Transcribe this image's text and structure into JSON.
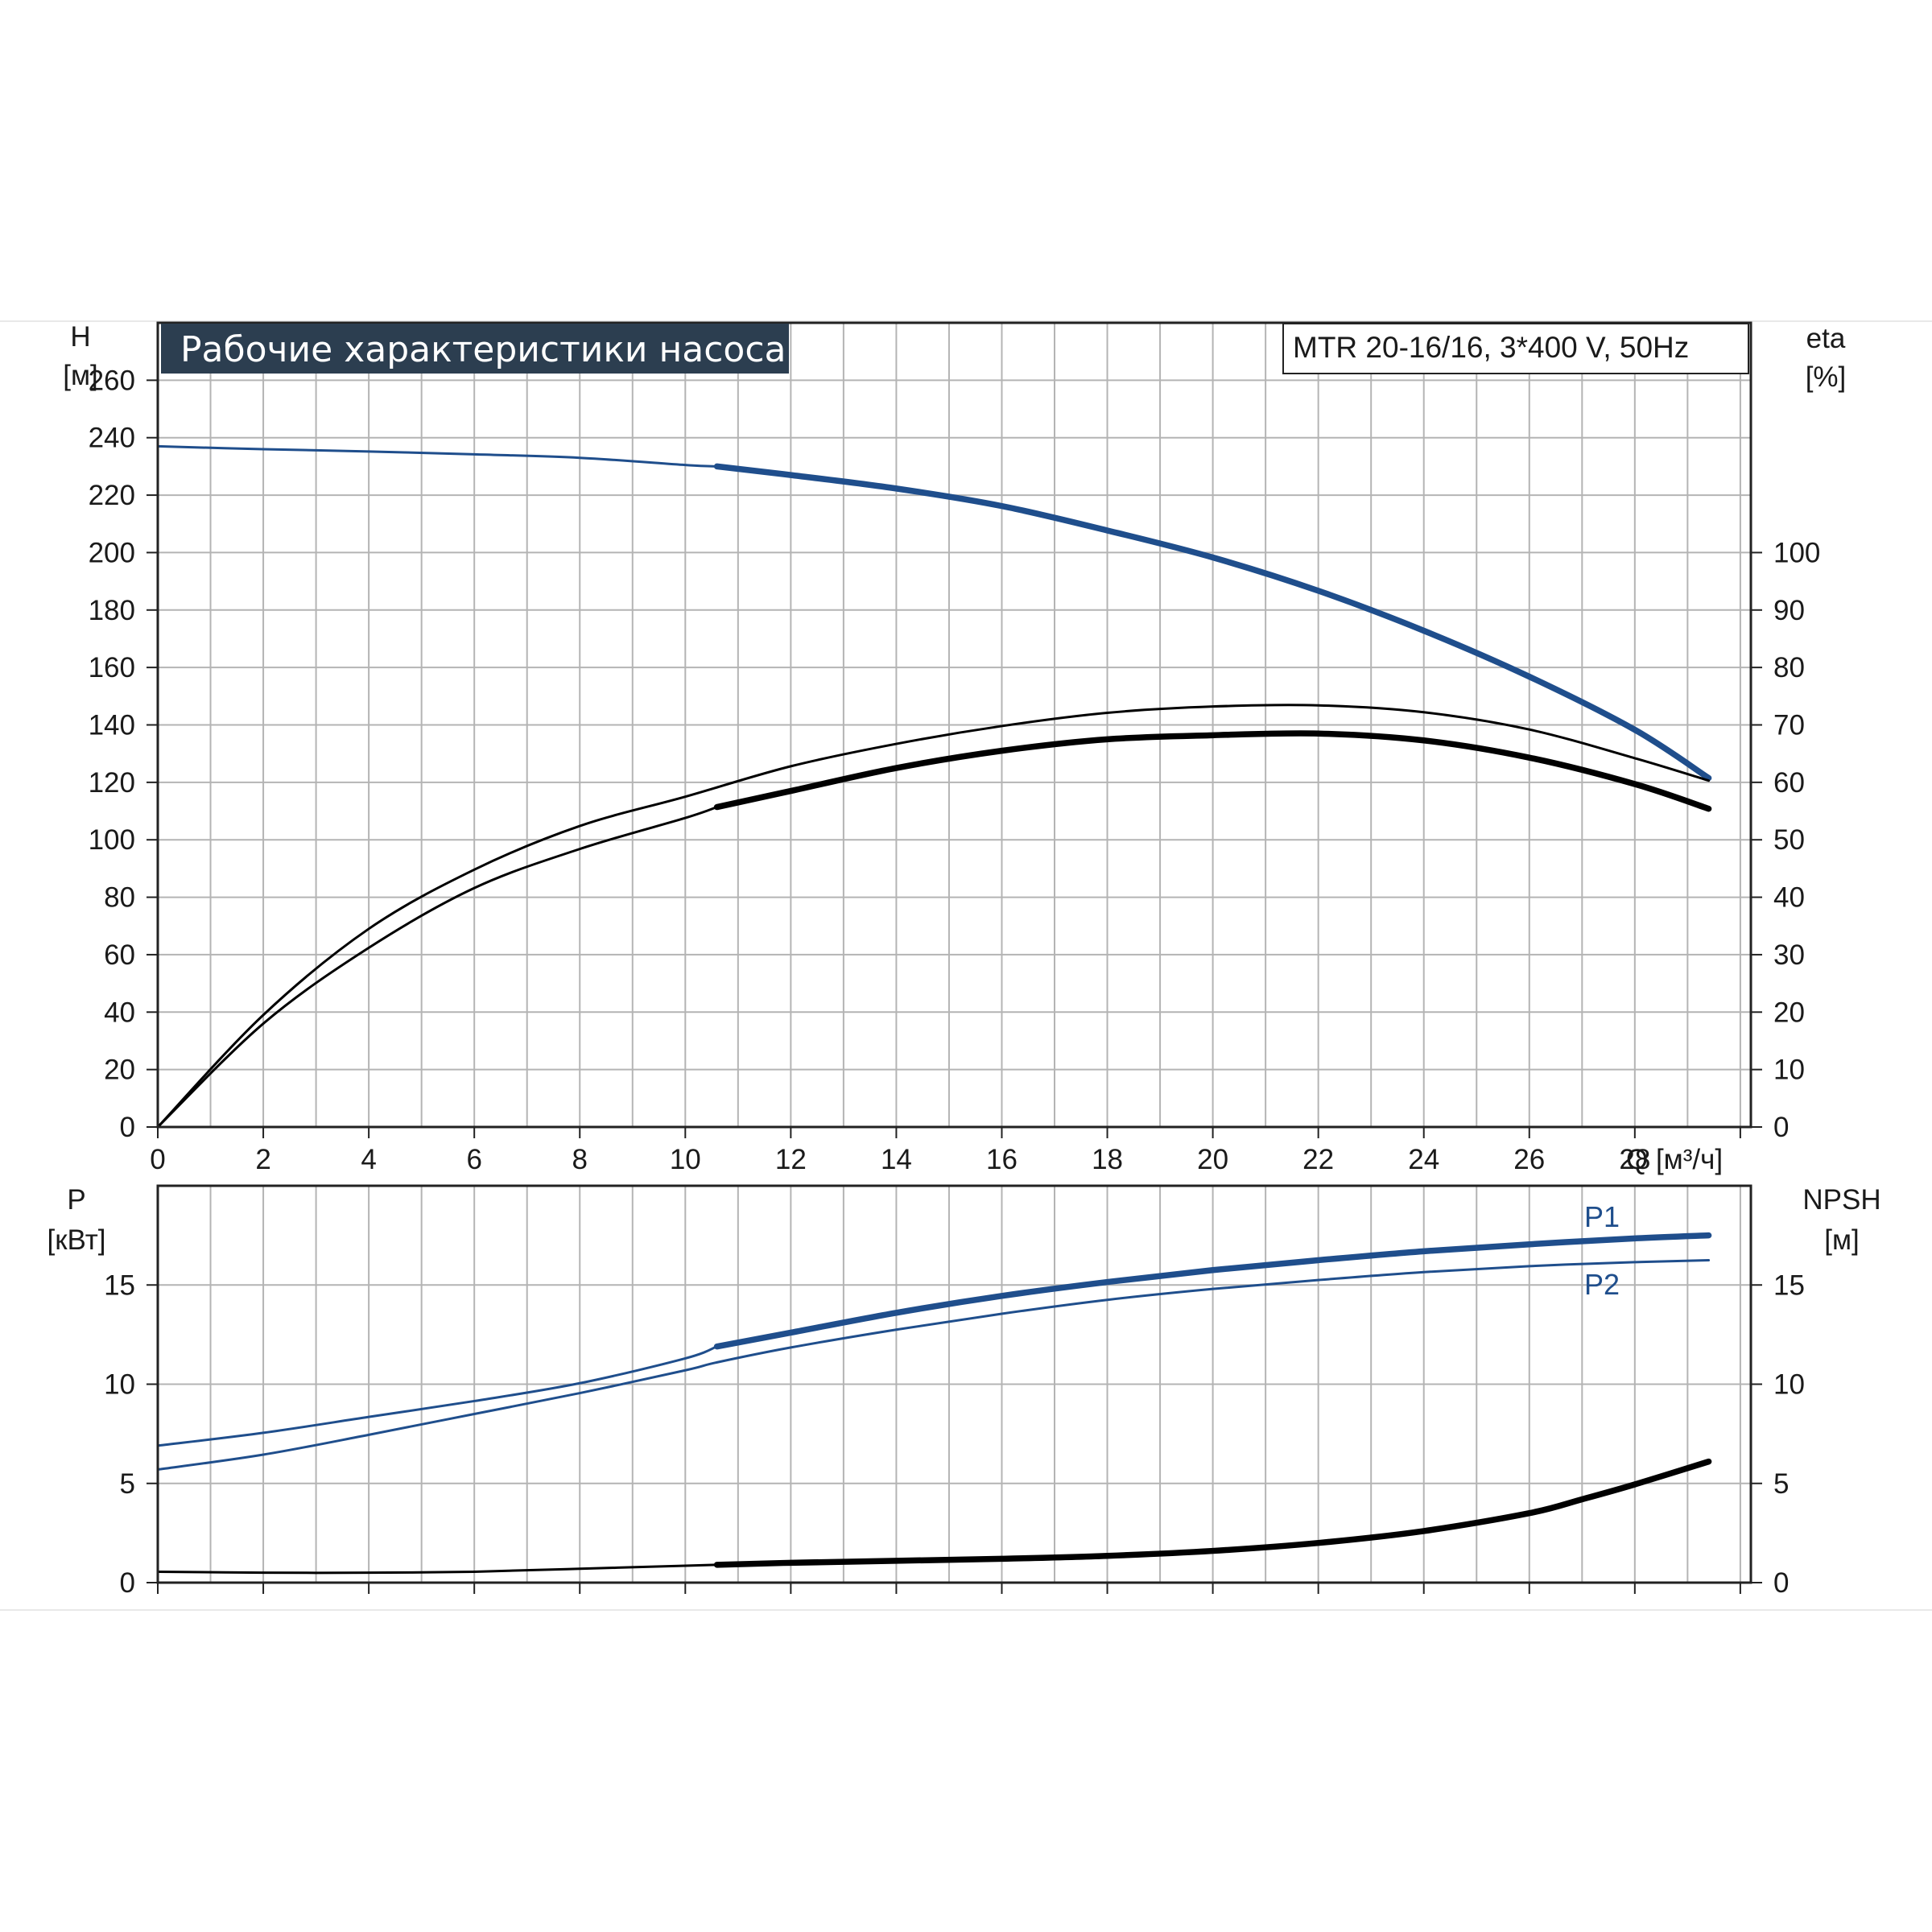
{
  "chart_data": [
    {
      "type": "line",
      "title": "Рабочие характеристики насоса",
      "model": "MTR 20-16/16, 3*400 V, 50Hz",
      "colors": {
        "blue": "#1f4e8c",
        "black": "#000000",
        "grid": "#b4b4b4",
        "title_bg": "#2c3e50"
      },
      "x_axis": {
        "label": "Q [м³/ч]",
        "ticks": [
          "0",
          "2",
          "4",
          "6",
          "8",
          "10",
          "12",
          "14",
          "16",
          "18",
          "20",
          "22",
          "24",
          "26",
          "28"
        ],
        "range": [
          0,
          30.2
        ]
      },
      "y_left": {
        "label": "H",
        "unit": "[м]",
        "ticks": [
          "0",
          "20",
          "40",
          "60",
          "80",
          "100",
          "120",
          "140",
          "160",
          "180",
          "200",
          "220",
          "240",
          "260"
        ],
        "range": [
          0,
          280
        ]
      },
      "y_right": {
        "label": "eta",
        "unit": "[%]",
        "ticks": [
          "0",
          "10",
          "20",
          "30",
          "40",
          "50",
          "60",
          "70",
          "80",
          "90",
          "100"
        ],
        "range": [
          0,
          140
        ]
      },
      "series": [
        {
          "color": "blue",
          "axis": "left",
          "thick_from": 10.6,
          "x": [
            0,
            2,
            4,
            6,
            8,
            10,
            10.6,
            12,
            14,
            16,
            18,
            20,
            22,
            24,
            26,
            28,
            29.4
          ],
          "y": [
            237,
            236,
            235.2,
            234.2,
            233,
            230.5,
            230,
            227,
            222.3,
            216.2,
            207.7,
            198.3,
            186.7,
            172.8,
            156.8,
            138.3,
            121.5
          ]
        },
        {
          "color": "black",
          "axis": "right",
          "thick_from": 99,
          "x": [
            0,
            2,
            4,
            6,
            8,
            10,
            12,
            14,
            16,
            18,
            20,
            22,
            24,
            26,
            28,
            29.4
          ],
          "y": [
            0,
            19.5,
            34.5,
            44.8,
            52.4,
            57.5,
            62.8,
            66.7,
            69.8,
            72.1,
            73.2,
            73.4,
            72.2,
            69.2,
            64.2,
            60.3
          ]
        },
        {
          "color": "black",
          "axis": "right",
          "thick_from": 10.6,
          "x": [
            0,
            2,
            4,
            6,
            8,
            10,
            10.6,
            12,
            14,
            16,
            18,
            20,
            22,
            24,
            26,
            28,
            29.4
          ],
          "y": [
            0,
            18,
            31.2,
            41.6,
            48.4,
            53.8,
            55.7,
            58.5,
            62.5,
            65.5,
            67.5,
            68.2,
            68.5,
            67.3,
            64.3,
            59.7,
            55.4
          ]
        }
      ]
    },
    {
      "type": "line",
      "x_axis": {
        "range": [
          0,
          30.2
        ]
      },
      "y_left": {
        "label": "P",
        "unit": "[кВт]",
        "ticks": [
          "0",
          "5",
          "10",
          "15"
        ],
        "range": [
          0,
          20
        ]
      },
      "y_right": {
        "label": "NPSH",
        "unit": "[м]",
        "ticks": [
          "0",
          "5",
          "10",
          "15"
        ],
        "range": [
          0,
          20
        ]
      },
      "series": [
        {
          "name": "P1",
          "color": "blue",
          "axis": "left",
          "thick_from": 10.6,
          "x": [
            0,
            2,
            4,
            6,
            8,
            10,
            10.6,
            12,
            14,
            16,
            18,
            20,
            22,
            24,
            26,
            28,
            29.4
          ],
          "y": [
            6.9,
            7.55,
            8.35,
            9.15,
            10.05,
            11.3,
            11.9,
            12.6,
            13.6,
            14.45,
            15.15,
            15.75,
            16.25,
            16.7,
            17.05,
            17.35,
            17.5
          ]
        },
        {
          "name": "P2",
          "color": "blue",
          "axis": "left",
          "thick_from": 99,
          "x": [
            0,
            2,
            4,
            6,
            8,
            10,
            10.6,
            12,
            14,
            16,
            18,
            20,
            22,
            24,
            26,
            28,
            29.4
          ],
          "y": [
            5.7,
            6.45,
            7.45,
            8.5,
            9.55,
            10.7,
            11.1,
            11.85,
            12.75,
            13.55,
            14.25,
            14.8,
            15.25,
            15.65,
            15.95,
            16.15,
            16.25
          ]
        },
        {
          "color": "black",
          "axis": "right",
          "thick_from": 10.6,
          "x": [
            0,
            2,
            4,
            6,
            8,
            10,
            10.6,
            12,
            14,
            16,
            18,
            20,
            22,
            24,
            26,
            27,
            28,
            29.4
          ],
          "y": [
            0.55,
            0.5,
            0.5,
            0.55,
            0.7,
            0.85,
            0.9,
            1.0,
            1.1,
            1.2,
            1.35,
            1.6,
            2.0,
            2.6,
            3.5,
            4.2,
            4.95,
            6.1
          ]
        }
      ]
    }
  ]
}
